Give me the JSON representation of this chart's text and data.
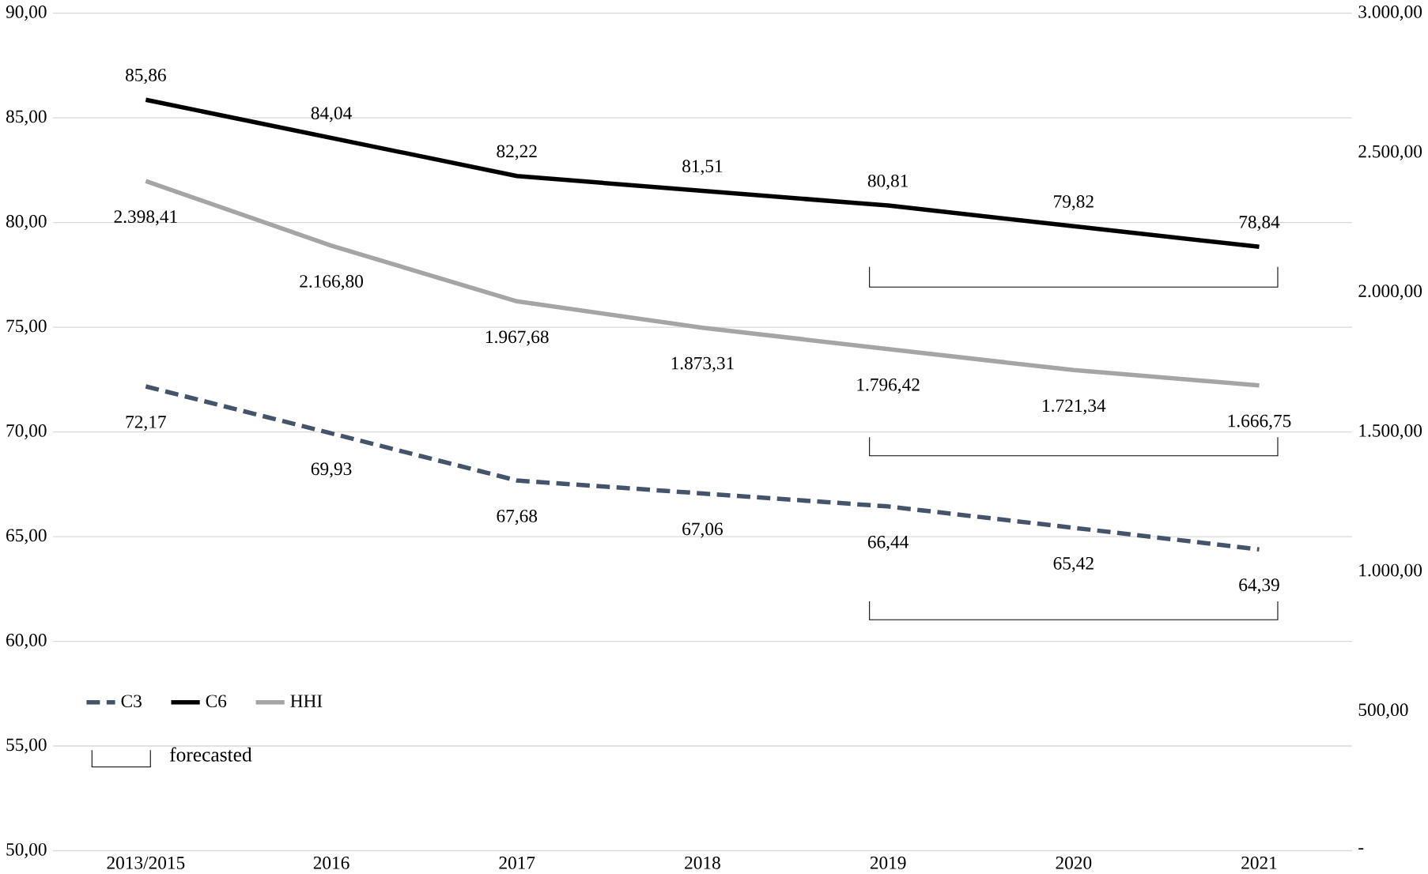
{
  "chart_data": {
    "type": "line",
    "categories": [
      "2013/2015",
      "2016",
      "2017",
      "2018",
      "2019",
      "2020",
      "2021"
    ],
    "series": [
      {
        "name": "C3",
        "color": "#44546a",
        "line_style": "dashed",
        "values": [
          72.17,
          69.93,
          67.68,
          67.06,
          66.44,
          65.42,
          64.39
        ],
        "value_labels": [
          "72,17",
          "69,93",
          "67,68",
          "67,06",
          "66,44",
          "65,42",
          "64,39"
        ]
      },
      {
        "name": "C6",
        "color": "#000000",
        "line_style": "solid",
        "values": [
          85.86,
          84.04,
          82.22,
          81.51,
          80.81,
          79.82,
          78.84
        ],
        "value_labels": [
          "85,86",
          "84,04",
          "82,22",
          "81,51",
          "80,81",
          "79,82",
          "78,84"
        ]
      },
      {
        "name": "HHI",
        "color": "#a5a5a5",
        "line_style": "solid",
        "axis": "y2",
        "values": [
          2398.41,
          2166.8,
          1967.68,
          1873.31,
          1796.42,
          1721.34,
          1666.75
        ],
        "value_labels": [
          "2.398,41",
          "2.166,80",
          "1.967,68",
          "1.873,31",
          "1.796,42",
          "1.721,34",
          "1.666,75"
        ]
      }
    ],
    "ylim": [
      50,
      90
    ],
    "yticks": [
      {
        "value": 50,
        "label": "50,00"
      },
      {
        "value": 55,
        "label": "55,00"
      },
      {
        "value": 60,
        "label": "60,00"
      },
      {
        "value": 65,
        "label": "65,00"
      },
      {
        "value": 70,
        "label": "70,00"
      },
      {
        "value": 75,
        "label": "75,00"
      },
      {
        "value": 80,
        "label": "80,00"
      },
      {
        "value": 85,
        "label": "85,00"
      },
      {
        "value": 90,
        "label": "90,00"
      }
    ],
    "y2lim": [
      0,
      3000
    ],
    "y2ticks": [
      {
        "value": 0,
        "label": "-"
      },
      {
        "value": 500,
        "label": "500,00"
      },
      {
        "value": 1000,
        "label": "1.000,00"
      },
      {
        "value": 1500,
        "label": "1.500,00"
      },
      {
        "value": 2000,
        "label": "2.000,00"
      },
      {
        "value": 2500,
        "label": "2.500,00"
      },
      {
        "value": 3000,
        "label": "3.000,00"
      }
    ],
    "grid": "y",
    "legend": "bottom left",
    "marker": "none",
    "annotations": [
      "forecasted"
    ]
  }
}
